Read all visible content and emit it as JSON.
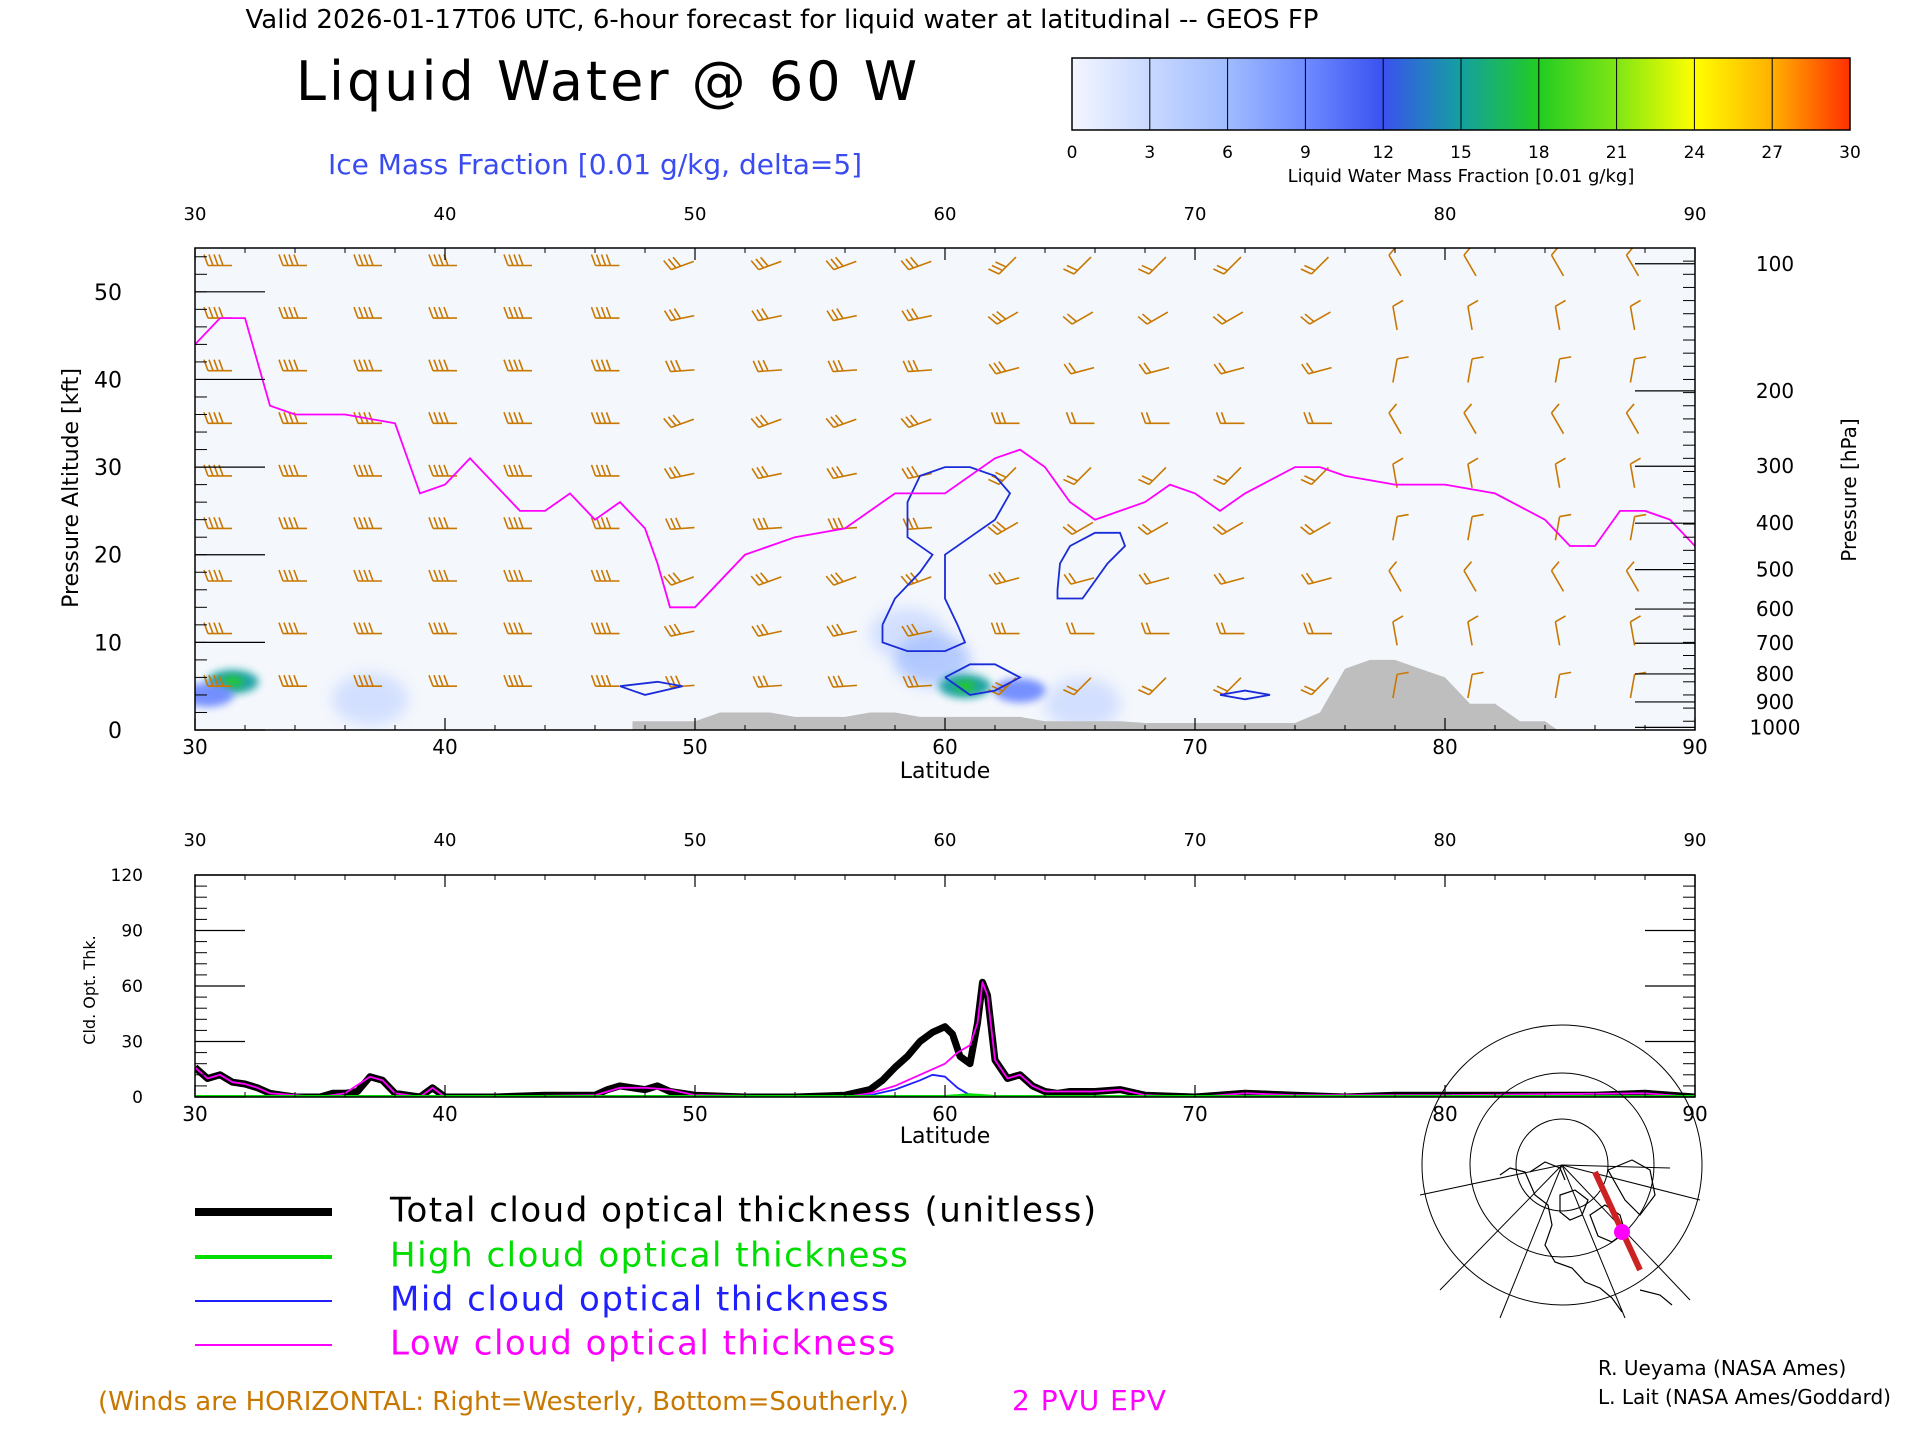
{
  "header": {
    "valid_line": "Valid 2026-01-17T06 UTC, 6-hour forecast for liquid water at latitudinal -- GEOS FP",
    "title": "Liquid Water @ 60 W",
    "ice_label": "Ice Mass Fraction [0.01 g/kg, delta=5]"
  },
  "colorbar": {
    "ticks": [
      "0",
      "3",
      "6",
      "9",
      "12",
      "15",
      "18",
      "21",
      "24",
      "27",
      "30"
    ],
    "label": "Liquid Water Mass Fraction [0.01 g/kg]",
    "colors": [
      "#f4f6ff",
      "#c8d8ff",
      "#a0bcff",
      "#6f8bff",
      "#3a52f0",
      "#14a0a0",
      "#22cc22",
      "#7fe614",
      "#ffff00",
      "#ffb000",
      "#ff3000"
    ]
  },
  "chart_data": [
    {
      "type": "heatmap",
      "title": "Liquid Water @ 60 W",
      "xlabel": "Latitude",
      "ylabel": "Pressure Altitude [kft]",
      "ylabel_right": "Pressure [hPa]",
      "xlim": [
        30,
        90
      ],
      "ylim": [
        0,
        55
      ],
      "x_ticks": [
        "30",
        "40",
        "50",
        "60",
        "70",
        "80",
        "90"
      ],
      "y_ticks": [
        "0",
        "10",
        "20",
        "30",
        "40",
        "50"
      ],
      "pressure_ticks": [
        {
          "label": "100",
          "kft": 53.2
        },
        {
          "label": "200",
          "kft": 38.7
        },
        {
          "label": "300",
          "kft": 30.1
        },
        {
          "label": "400",
          "kft": 23.6
        },
        {
          "label": "500",
          "kft": 18.3
        },
        {
          "label": "600",
          "kft": 13.8
        },
        {
          "label": "700",
          "kft": 9.9
        },
        {
          "label": "800",
          "kft": 6.4
        },
        {
          "label": "900",
          "kft": 3.2
        },
        {
          "label": "1000",
          "kft": 0.3
        }
      ],
      "liquid_water_blobs": [
        {
          "lat": 31.5,
          "kft": 5.5,
          "value": 14
        },
        {
          "lat": 30.5,
          "kft": 4.0,
          "value": 10
        },
        {
          "lat": 37.0,
          "kft": 3.5,
          "value": 4
        },
        {
          "lat": 58.5,
          "kft": 11,
          "value": 4
        },
        {
          "lat": 59.5,
          "kft": 8,
          "value": 7
        },
        {
          "lat": 60.8,
          "kft": 5,
          "value": 16
        },
        {
          "lat": 63.0,
          "kft": 4.5,
          "value": 9
        },
        {
          "lat": 65.5,
          "kft": 3,
          "value": 3
        }
      ],
      "epv_2pvu_line": [
        [
          30,
          44
        ],
        [
          31,
          47
        ],
        [
          32,
          47
        ],
        [
          33,
          37
        ],
        [
          34,
          36
        ],
        [
          36,
          36
        ],
        [
          38,
          35
        ],
        [
          39,
          27
        ],
        [
          40,
          28
        ],
        [
          41,
          31
        ],
        [
          42,
          28
        ],
        [
          43,
          25
        ],
        [
          44,
          25
        ],
        [
          45,
          27
        ],
        [
          46,
          24
        ],
        [
          47,
          26
        ],
        [
          48,
          23
        ],
        [
          48.5,
          19
        ],
        [
          49,
          14
        ],
        [
          50,
          14
        ],
        [
          52,
          20
        ],
        [
          54,
          22
        ],
        [
          56,
          23
        ],
        [
          58,
          27
        ],
        [
          60,
          27
        ],
        [
          62,
          31
        ],
        [
          63,
          32
        ],
        [
          64,
          30
        ],
        [
          65,
          26
        ],
        [
          66,
          24
        ],
        [
          67,
          25
        ],
        [
          68,
          26
        ],
        [
          69,
          28
        ],
        [
          70,
          27
        ],
        [
          71,
          25
        ],
        [
          72,
          27
        ],
        [
          74,
          30
        ],
        [
          75,
          30
        ],
        [
          76,
          29
        ],
        [
          78,
          28
        ],
        [
          80,
          28
        ],
        [
          82,
          27
        ],
        [
          84,
          24
        ],
        [
          85,
          21
        ],
        [
          86,
          21
        ],
        [
          87,
          25
        ],
        [
          88,
          25
        ],
        [
          89,
          24
        ],
        [
          90,
          21
        ]
      ],
      "ice_contours": [
        [
          [
            57.5,
            12
          ],
          [
            58,
            15
          ],
          [
            59,
            18
          ],
          [
            59.5,
            20
          ],
          [
            58.5,
            22
          ],
          [
            58.5,
            26
          ],
          [
            59,
            29
          ],
          [
            60,
            30
          ],
          [
            61,
            30
          ],
          [
            62,
            29
          ],
          [
            62.6,
            27
          ],
          [
            62,
            24
          ],
          [
            61,
            22
          ],
          [
            60,
            20
          ],
          [
            60,
            15
          ],
          [
            60.5,
            12
          ],
          [
            60.8,
            10
          ],
          [
            60,
            9
          ],
          [
            58.5,
            9
          ],
          [
            57.5,
            10
          ],
          [
            57.5,
            12
          ]
        ],
        [
          [
            64.5,
            16
          ],
          [
            64.6,
            19
          ],
          [
            65,
            21
          ],
          [
            66,
            22.5
          ],
          [
            67,
            22.5
          ],
          [
            67.2,
            21
          ],
          [
            66.5,
            19
          ],
          [
            65.5,
            15
          ],
          [
            64.5,
            15
          ],
          [
            64.5,
            16
          ]
        ],
        [
          [
            60,
            6
          ],
          [
            61,
            7.5
          ],
          [
            62,
            7.5
          ],
          [
            63,
            6
          ],
          [
            62,
            4.5
          ],
          [
            61,
            4
          ],
          [
            60,
            6
          ]
        ],
        [
          [
            47,
            5
          ],
          [
            48.5,
            5.5
          ],
          [
            49.5,
            5
          ],
          [
            48,
            4
          ],
          [
            47,
            5
          ]
        ],
        [
          [
            71,
            4
          ],
          [
            72,
            4.5
          ],
          [
            73,
            4
          ],
          [
            72,
            3.5
          ],
          [
            71,
            4
          ]
        ]
      ],
      "terrain": [
        [
          30,
          0
        ],
        [
          47.5,
          0
        ],
        [
          47.5,
          1
        ],
        [
          50,
          1
        ],
        [
          51,
          2
        ],
        [
          52,
          2
        ],
        [
          53,
          2
        ],
        [
          54,
          1.5
        ],
        [
          55,
          1.5
        ],
        [
          56,
          1.5
        ],
        [
          57,
          2
        ],
        [
          58,
          2
        ],
        [
          59,
          1.5
        ],
        [
          60,
          1.5
        ],
        [
          61,
          1.5
        ],
        [
          62,
          1.5
        ],
        [
          63,
          1.5
        ],
        [
          64,
          1
        ],
        [
          65,
          1
        ],
        [
          66,
          1
        ],
        [
          67,
          1
        ],
        [
          68,
          0.8
        ],
        [
          70,
          0.8
        ],
        [
          72,
          0.8
        ],
        [
          74,
          0.8
        ],
        [
          75,
          2
        ],
        [
          76,
          7
        ],
        [
          77,
          8
        ],
        [
          78,
          8
        ],
        [
          79,
          7
        ],
        [
          80,
          6
        ],
        [
          81,
          3
        ],
        [
          82,
          3
        ],
        [
          83,
          1
        ],
        [
          84,
          1
        ],
        [
          84.5,
          0
        ],
        [
          90,
          0
        ]
      ],
      "wind_barb_latitudes": [
        31,
        34,
        37,
        40,
        43,
        46.5,
        49.5,
        53,
        56,
        59,
        62.5,
        65.5,
        68.5,
        71.5,
        75,
        78,
        81,
        84.5,
        87.5
      ],
      "wind_barb_levels_kft": [
        53,
        47,
        41,
        35,
        29,
        23,
        17,
        11,
        5
      ]
    },
    {
      "type": "line",
      "title": "",
      "xlabel": "Latitude",
      "ylabel": "Cld. Opt. Thk.",
      "xlim": [
        30,
        90
      ],
      "ylim": [
        0,
        120
      ],
      "x_ticks": [
        "30",
        "40",
        "50",
        "60",
        "70",
        "80",
        "90"
      ],
      "y_ticks": [
        "0",
        "30",
        "60",
        "90",
        "120"
      ],
      "series": [
        {
          "name": "Total cloud optical thickness (unitless)",
          "color": "#000000",
          "x": [
            30,
            30.5,
            31,
            31.5,
            32,
            32.5,
            33,
            33.5,
            34,
            35,
            35.5,
            36,
            36.5,
            37,
            37.5,
            38,
            38.5,
            39,
            39.5,
            40,
            42,
            44,
            46,
            46.5,
            47,
            47.5,
            48,
            48.5,
            49,
            49.5,
            50,
            52,
            54,
            56,
            57,
            57.5,
            58,
            58.5,
            59,
            59.5,
            60,
            60.3,
            60.6,
            61,
            61.3,
            61.5,
            61.7,
            62,
            62.5,
            63,
            63.5,
            64,
            64.5,
            65,
            66,
            67,
            68,
            70,
            72,
            74,
            76,
            78,
            80,
            82,
            84,
            86,
            88,
            90
          ],
          "y": [
            16,
            10,
            12,
            8,
            7,
            5,
            2,
            1,
            0,
            0,
            2,
            2,
            3,
            11,
            9,
            2,
            1,
            0,
            5,
            0,
            0,
            1,
            1,
            4,
            6,
            5,
            4,
            6,
            3,
            2,
            1,
            0,
            0,
            1,
            4,
            9,
            16,
            22,
            30,
            35,
            38,
            34,
            22,
            18,
            40,
            62,
            55,
            20,
            10,
            12,
            6,
            3,
            2,
            3,
            3,
            4,
            1,
            0,
            2,
            1,
            0,
            1,
            1,
            1,
            1,
            1,
            2,
            0
          ]
        },
        {
          "name": "High cloud optical thickness",
          "color": "#00dd00",
          "x": [
            30,
            60,
            61,
            62,
            90
          ],
          "y": [
            0,
            0,
            1,
            0,
            0
          ]
        },
        {
          "name": "Mid cloud optical thickness",
          "color": "#2020ff",
          "x": [
            30,
            56,
            57,
            58,
            59,
            59.5,
            60,
            60.5,
            61,
            62,
            90
          ],
          "y": [
            0,
            0,
            1,
            4,
            9,
            12,
            11,
            5,
            1,
            0,
            0
          ]
        },
        {
          "name": "Low cloud optical thickness",
          "color": "#ff00ff",
          "x": [
            30,
            30.5,
            31,
            31.5,
            32,
            32.5,
            33,
            35,
            36,
            37,
            37.5,
            38,
            39,
            39.5,
            40,
            46,
            47,
            48,
            49,
            50,
            56,
            57,
            58,
            59,
            60,
            60.5,
            61,
            61.3,
            61.5,
            61.7,
            62,
            62.5,
            63,
            63.5,
            64,
            65,
            66,
            67,
            68,
            70,
            72,
            74,
            80,
            88,
            90
          ],
          "y": [
            16,
            10,
            12,
            8,
            7,
            5,
            2,
            0,
            2,
            11,
            9,
            2,
            0,
            5,
            0,
            1,
            5,
            5,
            4,
            1,
            0,
            2,
            6,
            12,
            18,
            24,
            28,
            40,
            62,
            55,
            20,
            10,
            12,
            6,
            3,
            3,
            3,
            4,
            1,
            0,
            2,
            1,
            1,
            2,
            0
          ]
        }
      ]
    }
  ],
  "legend": {
    "items": [
      {
        "label": "Total cloud optical thickness (unitless)",
        "color": "#000000"
      },
      {
        "label": "High cloud optical thickness",
        "color": "#00dd00"
      },
      {
        "label": "Mid cloud optical thickness",
        "color": "#2020ff"
      },
      {
        "label": "Low cloud optical thickness",
        "color": "#ff00ff"
      }
    ]
  },
  "footer": {
    "winds_note": "(Winds are HORIZONTAL: Right=Westerly, Bottom=Southerly.)",
    "epv_label": "2 PVU EPV",
    "credit_1": "R. Ueyama (NASA Ames)",
    "credit_2": "L. Lait (NASA Ames/Goddard)"
  },
  "colors": {
    "wind": "#c87800",
    "epv": "#ff00ff",
    "ice": "#1a2cd8",
    "terrain": "#bebebe",
    "ice_label": "#3a4cf0"
  }
}
